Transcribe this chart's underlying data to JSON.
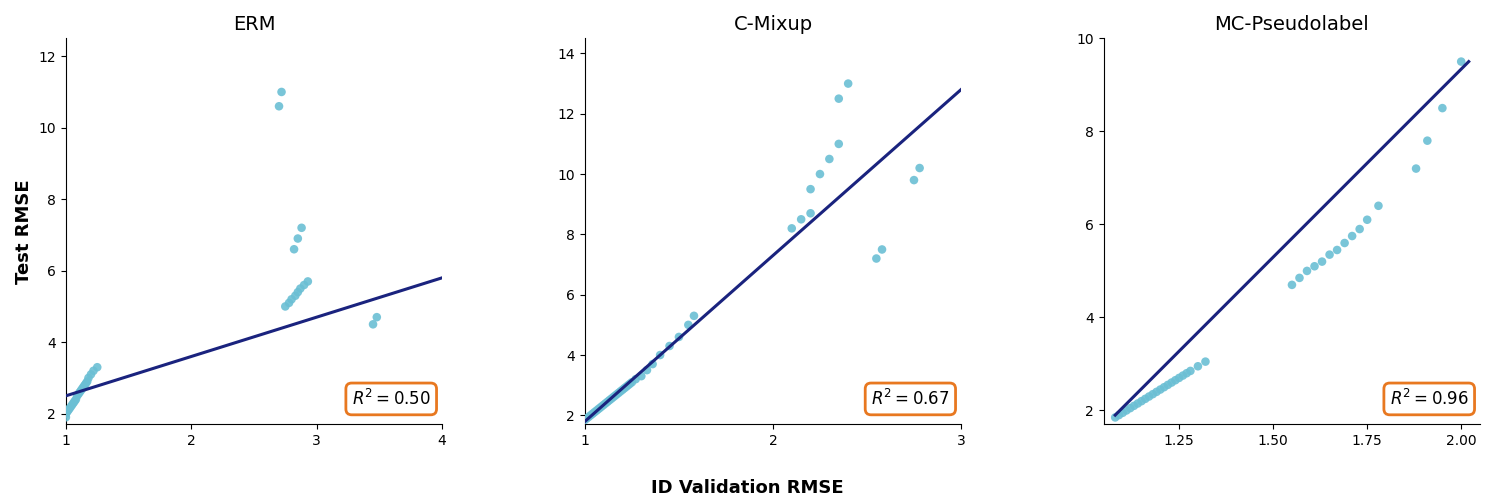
{
  "xlabel": "ID Validation RMSE",
  "ylabel": "Test RMSE",
  "scatter_color": "#6BBFD4",
  "line_color": "#1a237e",
  "plot1": {
    "title": "ERM",
    "r2": 0.5,
    "xlim": [
      1,
      4
    ],
    "ylim": [
      1.7,
      12.5
    ],
    "xticks": [
      1,
      2,
      3,
      4
    ],
    "yticks": [
      2,
      4,
      6,
      8,
      10,
      12
    ],
    "x": [
      1.0,
      1.0,
      1.01,
      1.02,
      1.03,
      1.04,
      1.05,
      1.06,
      1.07,
      1.08,
      1.09,
      1.1,
      1.11,
      1.12,
      1.13,
      1.14,
      1.15,
      1.16,
      1.17,
      1.18,
      1.2,
      1.22,
      1.25,
      2.75,
      2.78,
      2.8,
      2.83,
      2.85,
      2.87,
      2.9,
      2.93,
      2.82,
      2.85,
      2.88,
      2.7,
      2.72,
      3.45,
      3.48
    ],
    "y": [
      1.9,
      2.0,
      2.05,
      2.1,
      2.15,
      2.2,
      2.25,
      2.3,
      2.35,
      2.4,
      2.5,
      2.55,
      2.6,
      2.65,
      2.7,
      2.75,
      2.8,
      2.85,
      2.9,
      3.0,
      3.1,
      3.2,
      3.3,
      5.0,
      5.1,
      5.2,
      5.3,
      5.4,
      5.5,
      5.6,
      5.7,
      6.6,
      6.9,
      7.2,
      10.6,
      11.0,
      4.5,
      4.7
    ],
    "line_x": [
      1.0,
      4.0
    ],
    "line_y": [
      2.5,
      5.8
    ]
  },
  "plot2": {
    "title": "C-Mixup",
    "r2": 0.67,
    "xlim": [
      1,
      3
    ],
    "ylim": [
      1.7,
      14.5
    ],
    "xticks": [
      1,
      2,
      3
    ],
    "yticks": [
      2,
      4,
      6,
      8,
      10,
      12,
      14
    ],
    "x": [
      1.0,
      1.01,
      1.02,
      1.03,
      1.04,
      1.05,
      1.06,
      1.07,
      1.08,
      1.09,
      1.1,
      1.11,
      1.12,
      1.13,
      1.14,
      1.15,
      1.16,
      1.17,
      1.18,
      1.19,
      1.2,
      1.21,
      1.22,
      1.23,
      1.24,
      1.25,
      1.27,
      1.3,
      1.33,
      1.36,
      1.4,
      1.45,
      1.5,
      1.55,
      1.58,
      2.1,
      2.15,
      2.2,
      2.2,
      2.25,
      2.3,
      2.35,
      2.35,
      2.4,
      2.55,
      2.58,
      2.75,
      2.78
    ],
    "y": [
      1.85,
      1.9,
      1.95,
      2.0,
      2.05,
      2.1,
      2.15,
      2.2,
      2.25,
      2.3,
      2.35,
      2.4,
      2.45,
      2.5,
      2.55,
      2.6,
      2.65,
      2.7,
      2.75,
      2.8,
      2.85,
      2.9,
      2.95,
      3.0,
      3.05,
      3.1,
      3.2,
      3.3,
      3.5,
      3.7,
      4.0,
      4.3,
      4.6,
      5.0,
      5.3,
      8.2,
      8.5,
      8.7,
      9.5,
      10.0,
      10.5,
      11.0,
      12.5,
      13.0,
      7.2,
      7.5,
      9.8,
      10.2
    ],
    "line_x": [
      1.0,
      3.0
    ],
    "line_y": [
      1.8,
      12.8
    ]
  },
  "plot3": {
    "title": "MC-Pseudolabel",
    "r2": 0.96,
    "xlim": [
      1.05,
      2.05
    ],
    "ylim": [
      1.7,
      10.0
    ],
    "xticks": [
      1.25,
      1.5,
      1.75,
      2.0
    ],
    "yticks": [
      2,
      4,
      6,
      8,
      10
    ],
    "x": [
      1.08,
      1.09,
      1.1,
      1.11,
      1.12,
      1.13,
      1.14,
      1.15,
      1.16,
      1.17,
      1.18,
      1.19,
      1.2,
      1.21,
      1.22,
      1.23,
      1.24,
      1.25,
      1.26,
      1.27,
      1.28,
      1.3,
      1.32,
      1.55,
      1.57,
      1.59,
      1.61,
      1.63,
      1.65,
      1.67,
      1.69,
      1.71,
      1.73,
      1.75,
      1.78,
      1.88,
      1.91,
      1.95,
      2.0
    ],
    "y": [
      1.85,
      1.9,
      1.95,
      2.0,
      2.05,
      2.1,
      2.15,
      2.2,
      2.25,
      2.3,
      2.35,
      2.4,
      2.45,
      2.5,
      2.55,
      2.6,
      2.65,
      2.7,
      2.75,
      2.8,
      2.85,
      2.95,
      3.05,
      4.7,
      4.85,
      5.0,
      5.1,
      5.2,
      5.35,
      5.45,
      5.6,
      5.75,
      5.9,
      6.1,
      6.4,
      7.2,
      7.8,
      8.5,
      9.5
    ],
    "line_x": [
      1.08,
      2.02
    ],
    "line_y": [
      1.9,
      9.5
    ]
  }
}
